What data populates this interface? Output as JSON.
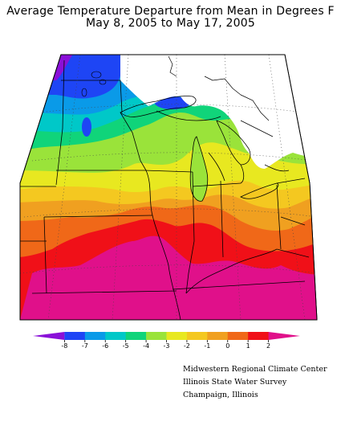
{
  "title_line1": "Average Temperature Departure from Mean in Degrees F",
  "title_line2": "May 8, 2005 to May 17, 2005",
  "legend": {
    "ticks": [
      "-8",
      "-7",
      "-6",
      "-5",
      "-4",
      "-3",
      "-2",
      "-1",
      "0",
      "1",
      "2"
    ],
    "colors": [
      "#8a10d8",
      "#1e45f5",
      "#0a9ae8",
      "#00c8c8",
      "#10d47a",
      "#9ae33a",
      "#e8e820",
      "#f4c820",
      "#f0a020",
      "#f06818",
      "#f01018",
      "#e0108a"
    ]
  },
  "credits": [
    "Midwestern Regional Climate Center",
    "Illinois State Water Survey",
    "Champaign, Illinois"
  ]
}
